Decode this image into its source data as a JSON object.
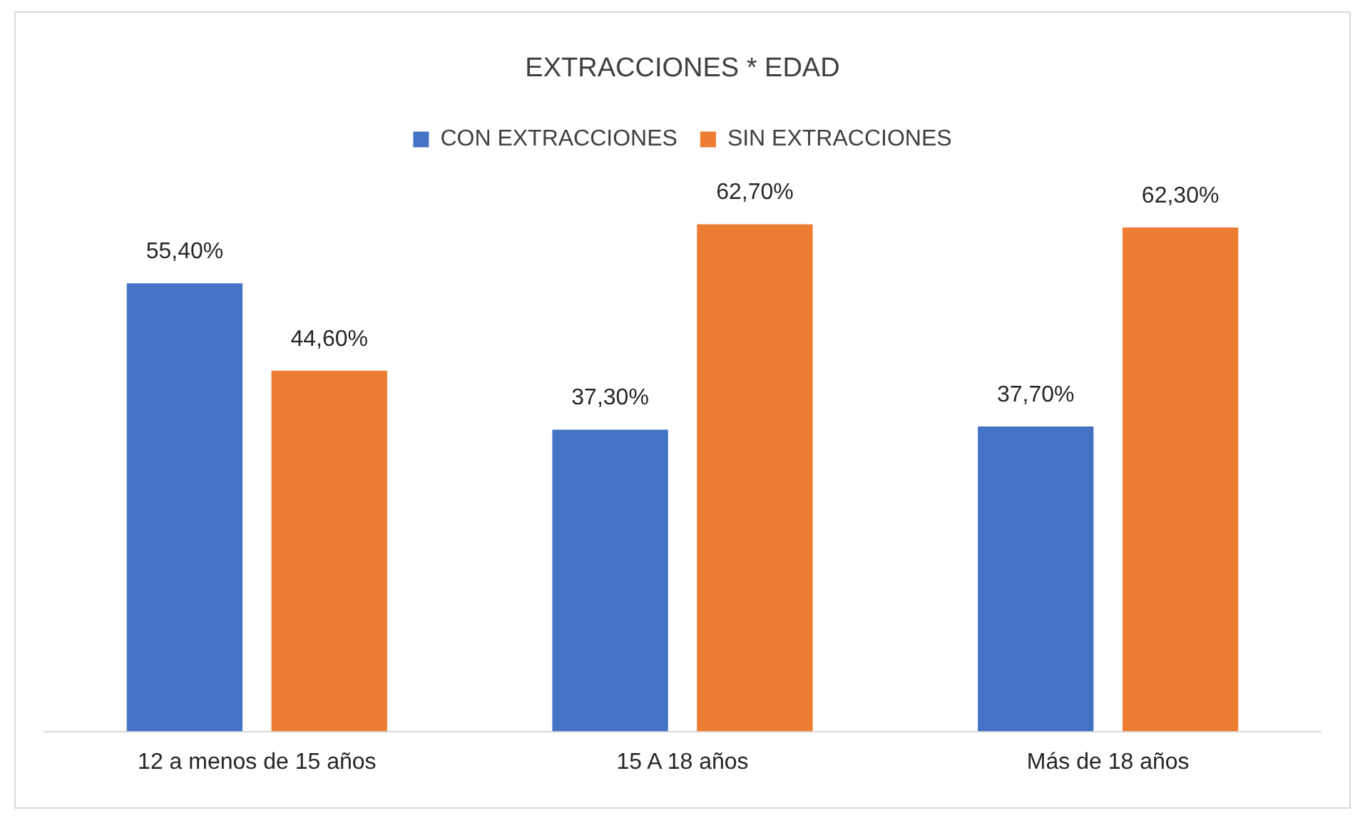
{
  "chart_data": {
    "type": "bar",
    "title": "EXTRACCIONES * EDAD",
    "categories": [
      "12 a menos de 15 años",
      "15 A 18 años",
      "Más de 18 años"
    ],
    "series": [
      {
        "name": "CON EXTRACCIONES",
        "color": "#4472c4",
        "values": [
          55.4,
          37.3,
          37.7
        ],
        "value_labels": [
          "55,40%",
          "37,30%",
          "37,70%"
        ]
      },
      {
        "name": "SIN EXTRACCIONES",
        "color": "#ed7d31",
        "values": [
          44.6,
          62.7,
          62.3
        ],
        "value_labels": [
          "44,60%",
          "62,70%",
          "62,30%"
        ]
      }
    ],
    "legend": "top",
    "grid": false,
    "tick_labels": "x"
  }
}
